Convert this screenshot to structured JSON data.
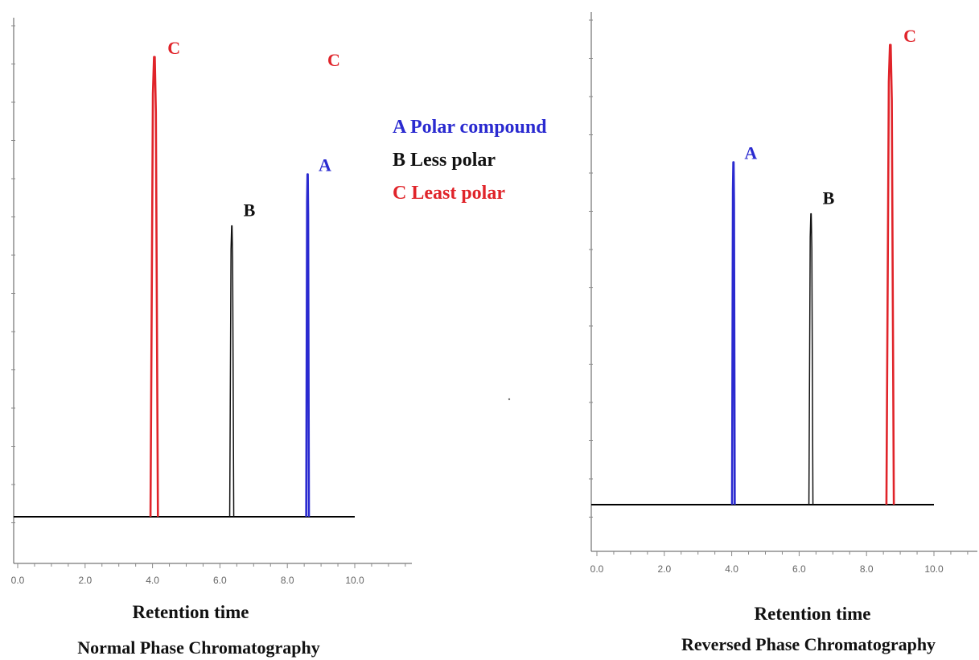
{
  "colors": {
    "A": "#2a2ad0",
    "B": "#111111",
    "C": "#e0242a",
    "axis": "#555555",
    "baseline": "#000000"
  },
  "legend": [
    {
      "key": "A",
      "text": "A Polar compound"
    },
    {
      "key": "B",
      "text": "B Less polar"
    },
    {
      "key": "C",
      "text": "C Least polar"
    }
  ],
  "chart_data": [
    {
      "type": "line",
      "title": "Normal Phase Chromatography",
      "xlabel": "Retention time",
      "ylabel": "",
      "xlim": [
        0,
        11.5
      ],
      "ylim": [
        -0.05,
        1.05
      ],
      "xticks": [
        "0.0",
        "2.0",
        "4.0",
        "6.0",
        "8.0",
        "10.0"
      ],
      "baseline_end": 10,
      "peaks": [
        {
          "label": "C",
          "rt": 4.05,
          "height": 0.98,
          "width": 0.22
        },
        {
          "label": "B",
          "rt": 6.35,
          "height": 0.62,
          "width": 0.12
        },
        {
          "label": "A",
          "rt": 8.6,
          "height": 0.73,
          "width": 0.08
        }
      ],
      "stray_label": "C",
      "grid": false,
      "legend_position": "right"
    },
    {
      "type": "line",
      "title": "Reversed Phase Chromatography",
      "xlabel": "Retention time",
      "ylabel": "",
      "xlim": [
        0,
        11.5
      ],
      "ylim": [
        -0.05,
        1.05
      ],
      "xticks": [
        "0.0",
        "2.0",
        "4.0",
        "6.0",
        "8.0",
        "10.0"
      ],
      "baseline_end": 10,
      "peaks": [
        {
          "label": "A",
          "rt": 4.05,
          "height": 0.73,
          "width": 0.08
        },
        {
          "label": "B",
          "rt": 6.35,
          "height": 0.62,
          "width": 0.12
        },
        {
          "label": "C",
          "rt": 8.7,
          "height": 0.98,
          "width": 0.22
        }
      ],
      "grid": false
    }
  ]
}
